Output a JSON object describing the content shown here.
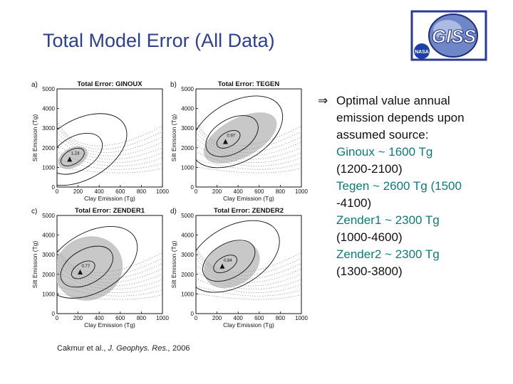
{
  "slide": {
    "title": "Total Model Error (All Data)",
    "logo_text": "GISS",
    "logo_badge": "NASA"
  },
  "bullet": {
    "arrow": "⇒",
    "lines": [
      {
        "text": "Optimal value annual",
        "color": "#111111"
      },
      {
        "text": "emission depends upon",
        "color": "#111111"
      },
      {
        "text": "assumed source:",
        "color": "#111111"
      },
      {
        "text": "Ginoux ~ 1600 Tg",
        "color": "#0e7a7a"
      },
      {
        "text": "(1200-2100)",
        "color": "#111111"
      },
      {
        "text": "Tegen   ~ 2600 Tg (1500",
        "color": "#0e7a7a"
      },
      {
        "text": "-4100)",
        "color": "#111111"
      },
      {
        "text": "Zender1 ~ 2300 Tg",
        "color": "#0e7a7a"
      },
      {
        "text": "(1000-4600)",
        "color": "#111111"
      },
      {
        "text": "Zender2 ~ 2300 Tg",
        "color": "#0e7a7a"
      },
      {
        "text": "(1300-3800)",
        "color": "#111111"
      }
    ]
  },
  "citation": {
    "authors": "Cakmur et al., ",
    "journal": "J. Geophys. Res.,",
    "year": " 2006"
  },
  "chart_data": [
    {
      "type": "contour",
      "panel_label": "a)",
      "title": "Total Error: GINOUX",
      "xlabel": "Clay Emission (Tg)",
      "ylabel": "Silt Emission (Tg)",
      "xlim": [
        0,
        1000
      ],
      "ylim": [
        0,
        5000
      ],
      "xticks": [
        0,
        200,
        400,
        600,
        800,
        1000
      ],
      "yticks": [
        0,
        1000,
        2000,
        3000,
        4000,
        5000
      ],
      "optimum": {
        "x": 120,
        "y": 1400,
        "label": "1.24"
      },
      "shaded_region": {
        "cx": 150,
        "cy": 1500,
        "rx": 150,
        "ry": 500
      }
    },
    {
      "type": "contour",
      "panel_label": "b)",
      "title": "Total Error: TEGEN",
      "xlabel": "Clay Emission (Tg)",
      "ylabel": "Silt Emission (Tg)",
      "xlim": [
        0,
        1000
      ],
      "ylim": [
        0,
        5000
      ],
      "xticks": [
        0,
        200,
        400,
        600,
        800,
        1000
      ],
      "yticks": [
        0,
        1000,
        2000,
        3000,
        4000,
        5000
      ],
      "optimum": {
        "x": 280,
        "y": 2300,
        "label": "0.97"
      },
      "shaded_region": {
        "cx": 420,
        "cy": 2500,
        "rx": 380,
        "ry": 1000
      }
    },
    {
      "type": "contour",
      "panel_label": "c)",
      "title": "Total Error: ZENDER1",
      "xlabel": "Clay Emission (Tg)",
      "ylabel": "Silt Emission (Tg)",
      "xlim": [
        0,
        1000
      ],
      "ylim": [
        0,
        5000
      ],
      "xticks": [
        0,
        200,
        400,
        600,
        800,
        1000
      ],
      "yticks": [
        0,
        1000,
        2000,
        3000,
        4000,
        5000
      ],
      "optimum": {
        "x": 220,
        "y": 2100,
        "label": "0.77"
      },
      "shaded_region": {
        "cx": 300,
        "cy": 2300,
        "rx": 330,
        "ry": 1600
      }
    },
    {
      "type": "contour",
      "panel_label": "d)",
      "title": "Total Error: ZENDER2",
      "xlabel": "Clay Emission (Tg)",
      "ylabel": "Silt Emission (Tg)",
      "xlim": [
        0,
        1000
      ],
      "ylim": [
        0,
        5000
      ],
      "xticks": [
        0,
        200,
        400,
        600,
        800,
        1000
      ],
      "yticks": [
        0,
        1000,
        2000,
        3000,
        4000,
        5000
      ],
      "optimum": {
        "x": 250,
        "y": 2400,
        "label": "0.84"
      },
      "shaded_region": {
        "cx": 340,
        "cy": 2500,
        "rx": 280,
        "ry": 1100
      }
    }
  ]
}
